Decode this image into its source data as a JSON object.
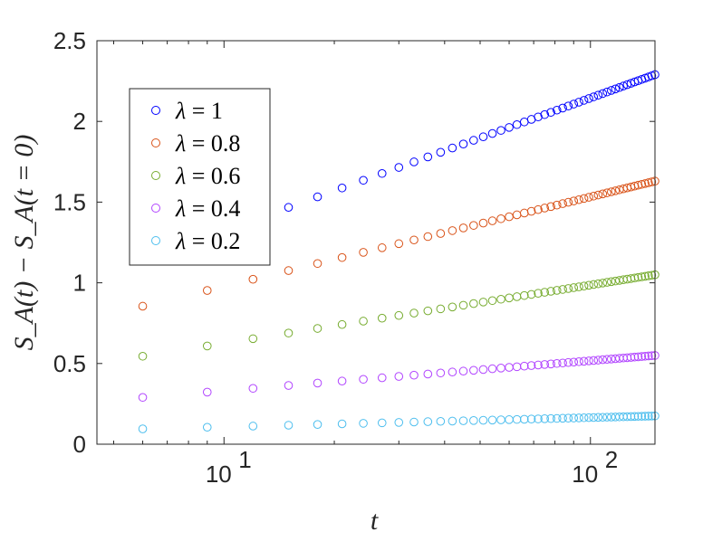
{
  "chart_data": {
    "type": "scatter",
    "xscale": "log",
    "xlim": [
      4.5,
      150
    ],
    "ylim": [
      0,
      2.5
    ],
    "xlabel": "t",
    "ylabel": "S_A(t) − S_A(t = 0)",
    "x_ticks": [
      {
        "value": 10,
        "base": "10",
        "exp": "1"
      },
      {
        "value": 100,
        "base": "10",
        "exp": "2"
      }
    ],
    "y_ticks": [
      {
        "value": 0,
        "label": "0"
      },
      {
        "value": 0.5,
        "label": "0.5"
      },
      {
        "value": 1,
        "label": "1"
      },
      {
        "value": 1.5,
        "label": "1.5"
      },
      {
        "value": 2,
        "label": "2"
      },
      {
        "value": 2.5,
        "label": "2.5"
      }
    ],
    "grid": false,
    "legend_position": "top-left",
    "series": [
      {
        "name": "λ = 1",
        "color": "#0000ff",
        "y0": 1.14,
        "y1": 2.29
      },
      {
        "name": "λ = 0.8",
        "color": "#d95319",
        "y0": 0.855,
        "y1": 1.63
      },
      {
        "name": "λ = 0.6",
        "color": "#77ac30",
        "y0": 0.545,
        "y1": 1.05
      },
      {
        "name": "λ = 0.4",
        "color": "#b144ff",
        "y0": 0.29,
        "y1": 0.55
      },
      {
        "name": "λ = 0.2",
        "color": "#4dbeee",
        "y0": 0.095,
        "y1": 0.175
      }
    ],
    "x_values": [
      6,
      9,
      12,
      15,
      18,
      21,
      24,
      27,
      30,
      33,
      36,
      39,
      42,
      45,
      48,
      51,
      54,
      57,
      60,
      63,
      66,
      69,
      72,
      75,
      78,
      81,
      84,
      87,
      90,
      93,
      96,
      99,
      102,
      105,
      108,
      111,
      114,
      117,
      120,
      123,
      126,
      129,
      132,
      135,
      138,
      141,
      144,
      147,
      150
    ]
  }
}
